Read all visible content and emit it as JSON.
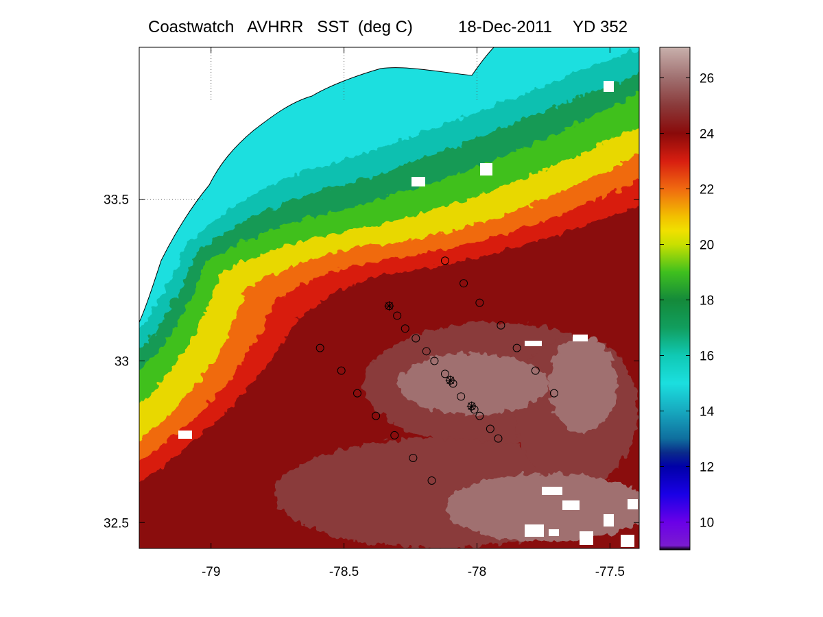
{
  "title": {
    "product": "Coastwatch   AVHRR   SST  (deg C)",
    "date": "18-Dec-2011",
    "yearday": "YD 352"
  },
  "map": {
    "x_ticks": [
      "-79",
      "-78.5",
      "-78",
      "-77.5"
    ],
    "y_ticks": [
      "33.5",
      "33",
      "32.5"
    ],
    "lon_range": [
      -79.27,
      -77.39
    ],
    "lat_range": [
      32.42,
      33.97
    ],
    "grid_lon": [
      -79,
      -78.5,
      -78
    ],
    "grid_lat": [
      33.5
    ],
    "land_color": "#ffffff",
    "coastline_color": "#000000",
    "sst_region_values_deg_c": {
      "nearshore_shelf": 15,
      "mid_shelf": 17,
      "shelf_break_front": 20,
      "gulf_stream_edge": 22.5,
      "gulf_stream_core": 24,
      "offshore_east": 25.5
    },
    "stations": [
      {
        "lon": -78.12,
        "lat": 33.31,
        "mark": "circle"
      },
      {
        "lon": -78.05,
        "lat": 33.24,
        "mark": "circle"
      },
      {
        "lon": -77.99,
        "lat": 33.18,
        "mark": "circle"
      },
      {
        "lon": -78.33,
        "lat": 33.17,
        "mark": "circle-star"
      },
      {
        "lon": -78.3,
        "lat": 33.14,
        "mark": "circle"
      },
      {
        "lon": -77.91,
        "lat": 33.11,
        "mark": "circle"
      },
      {
        "lon": -78.27,
        "lat": 33.1,
        "mark": "circle"
      },
      {
        "lon": -78.23,
        "lat": 33.07,
        "mark": "circle"
      },
      {
        "lon": -78.59,
        "lat": 33.04,
        "mark": "circle"
      },
      {
        "lon": -77.85,
        "lat": 33.04,
        "mark": "circle"
      },
      {
        "lon": -78.19,
        "lat": 33.03,
        "mark": "circle"
      },
      {
        "lon": -78.16,
        "lat": 33.0,
        "mark": "circle"
      },
      {
        "lon": -78.51,
        "lat": 32.97,
        "mark": "circle"
      },
      {
        "lon": -77.78,
        "lat": 32.97,
        "mark": "circle"
      },
      {
        "lon": -78.12,
        "lat": 32.96,
        "mark": "circle"
      },
      {
        "lon": -78.1,
        "lat": 32.94,
        "mark": "circle-star"
      },
      {
        "lon": -78.09,
        "lat": 32.93,
        "mark": "circle"
      },
      {
        "lon": -78.45,
        "lat": 32.9,
        "mark": "circle"
      },
      {
        "lon": -77.71,
        "lat": 32.9,
        "mark": "circle"
      },
      {
        "lon": -78.06,
        "lat": 32.89,
        "mark": "circle"
      },
      {
        "lon": -78.02,
        "lat": 32.86,
        "mark": "circle-star"
      },
      {
        "lon": -78.01,
        "lat": 32.85,
        "mark": "circle"
      },
      {
        "lon": -78.38,
        "lat": 32.83,
        "mark": "circle"
      },
      {
        "lon": -77.99,
        "lat": 32.83,
        "mark": "circle"
      },
      {
        "lon": -77.95,
        "lat": 32.79,
        "mark": "circle"
      },
      {
        "lon": -78.31,
        "lat": 32.77,
        "mark": "circle"
      },
      {
        "lon": -77.92,
        "lat": 32.76,
        "mark": "circle"
      },
      {
        "lon": -78.24,
        "lat": 32.7,
        "mark": "circle"
      },
      {
        "lon": -78.17,
        "lat": 32.63,
        "mark": "circle"
      }
    ]
  },
  "colorbar": {
    "ticks": [
      "10",
      "12",
      "14",
      "16",
      "18",
      "20",
      "22",
      "24",
      "26"
    ],
    "range": [
      9.0,
      27.1
    ],
    "colormap": [
      {
        "v": 9.0,
        "c": "#000000"
      },
      {
        "v": 9.15,
        "c": "#7a1bd0"
      },
      {
        "v": 10.0,
        "c": "#6a00e8"
      },
      {
        "v": 11.0,
        "c": "#1a00e6"
      },
      {
        "v": 12.0,
        "c": "#0000a8"
      },
      {
        "v": 12.5,
        "c": "#0a2a8a"
      },
      {
        "v": 13.0,
        "c": "#0f6e9e"
      },
      {
        "v": 14.0,
        "c": "#17a9bf"
      },
      {
        "v": 15.0,
        "c": "#1bdfdf"
      },
      {
        "v": 16.0,
        "c": "#10c9b4"
      },
      {
        "v": 17.0,
        "c": "#119e5e"
      },
      {
        "v": 18.0,
        "c": "#148a3a"
      },
      {
        "v": 19.0,
        "c": "#3fc01e"
      },
      {
        "v": 20.0,
        "c": "#c8e000"
      },
      {
        "v": 20.5,
        "c": "#f0e000"
      },
      {
        "v": 21.0,
        "c": "#f2c000"
      },
      {
        "v": 22.0,
        "c": "#f06a10"
      },
      {
        "v": 23.0,
        "c": "#d81e10"
      },
      {
        "v": 24.0,
        "c": "#8a0a0a"
      },
      {
        "v": 25.0,
        "c": "#8a3a3a"
      },
      {
        "v": 26.0,
        "c": "#a07070"
      },
      {
        "v": 27.1,
        "c": "#c8b0ac"
      }
    ]
  }
}
